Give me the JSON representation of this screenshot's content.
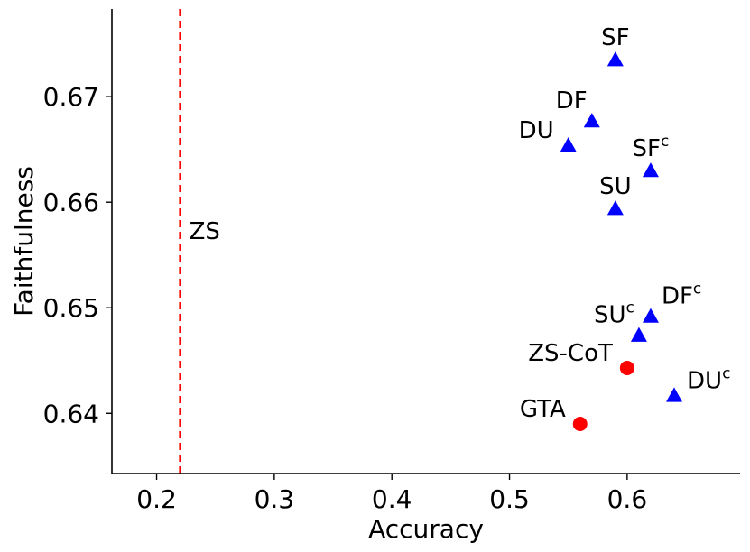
{
  "chart_data": {
    "type": "scatter",
    "title": "",
    "xlabel": "Accuracy",
    "ylabel": "Faithfulness",
    "xlim": [
      0.162,
      0.696
    ],
    "ylim": [
      0.6343,
      0.6783
    ],
    "xticks": [
      {
        "value": 0.2,
        "label": "0.2"
      },
      {
        "value": 0.3,
        "label": "0.3"
      },
      {
        "value": 0.4,
        "label": "0.4"
      },
      {
        "value": 0.5,
        "label": "0.5"
      },
      {
        "value": 0.6,
        "label": "0.6"
      }
    ],
    "yticks": [
      {
        "value": 0.64,
        "label": "0.64"
      },
      {
        "value": 0.65,
        "label": "0.65"
      },
      {
        "value": 0.66,
        "label": "0.66"
      },
      {
        "value": 0.67,
        "label": "0.67"
      }
    ],
    "reference_line": {
      "x": 0.22,
      "label": "ZS",
      "color": "#ff0000",
      "style": "dashed"
    },
    "colors": {
      "triangle": "#0000ff",
      "circle": "#ff0000",
      "axis": "#000000"
    },
    "points": [
      {
        "label": "SF",
        "sup": "",
        "x": 0.59,
        "y": 0.6735,
        "marker": "triangle",
        "anchor": "above"
      },
      {
        "label": "DF",
        "sup": "",
        "x": 0.57,
        "y": 0.6677,
        "marker": "triangle",
        "anchor": "above-left"
      },
      {
        "label": "DU",
        "sup": "",
        "x": 0.55,
        "y": 0.6654,
        "marker": "triangle",
        "anchor": "left"
      },
      {
        "label": "SF",
        "sup": "c",
        "x": 0.62,
        "y": 0.663,
        "marker": "triangle",
        "anchor": "above"
      },
      {
        "label": "SU",
        "sup": "",
        "x": 0.59,
        "y": 0.6594,
        "marker": "triangle",
        "anchor": "above"
      },
      {
        "label": "DF",
        "sup": "c",
        "x": 0.62,
        "y": 0.6492,
        "marker": "triangle",
        "anchor": "above-right"
      },
      {
        "label": "SU",
        "sup": "c",
        "x": 0.61,
        "y": 0.6474,
        "marker": "triangle",
        "anchor": "above-left"
      },
      {
        "label": "ZS-CoT",
        "sup": "",
        "x": 0.6,
        "y": 0.6443,
        "marker": "circle",
        "anchor": "left"
      },
      {
        "label": "DU",
        "sup": "c",
        "x": 0.64,
        "y": 0.6417,
        "marker": "triangle",
        "anchor": "right"
      },
      {
        "label": "GTA",
        "sup": "",
        "x": 0.56,
        "y": 0.639,
        "marker": "circle",
        "anchor": "left"
      }
    ]
  }
}
